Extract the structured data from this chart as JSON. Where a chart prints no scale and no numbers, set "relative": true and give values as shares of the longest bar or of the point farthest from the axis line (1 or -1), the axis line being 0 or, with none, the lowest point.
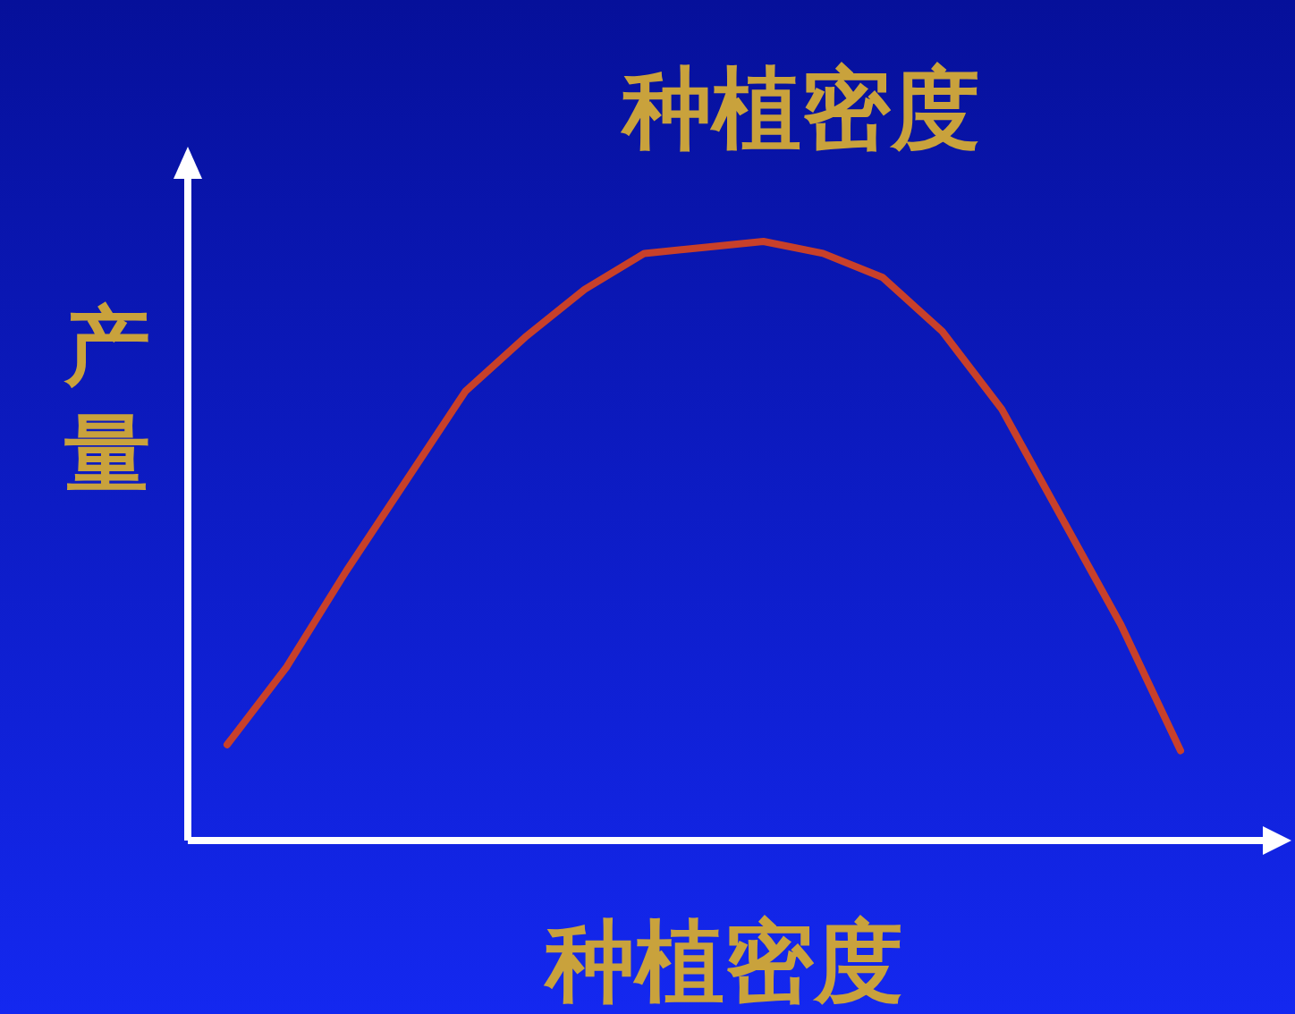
{
  "chart_data": {
    "type": "line",
    "title": "种植密度",
    "xlabel": "种植密度",
    "ylabel": "产量",
    "relative": true,
    "categories": [
      null,
      null,
      null,
      null,
      null,
      null,
      null,
      null,
      null,
      null,
      null,
      null,
      null,
      null,
      null,
      null,
      null
    ],
    "series": [
      {
        "color": "#c8402a",
        "values": [
          0.16,
          0.29,
          0.45,
          0.6,
          0.75,
          0.84,
          0.92,
          0.98,
          0.99,
          1,
          0.98,
          0.94,
          0.85,
          0.72,
          0.54,
          0.36,
          0.15
        ]
      }
    ]
  }
}
